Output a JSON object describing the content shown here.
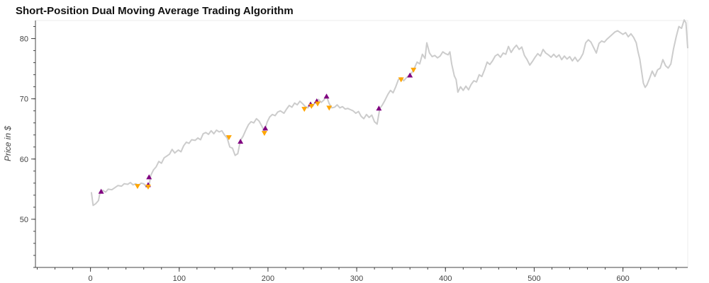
{
  "chart_data": {
    "type": "line",
    "title": "Short-Position Dual Moving Average Trading Algorithm",
    "xlabel": "",
    "ylabel": "Price in $",
    "xlim": [
      -62,
      673
    ],
    "ylim": [
      42,
      83
    ],
    "xticks": [
      0,
      100,
      200,
      300,
      400,
      500,
      600
    ],
    "yticks": [
      50,
      60,
      70,
      80
    ],
    "x_minor_step": 20,
    "y_minor_step": 2,
    "grid": false,
    "colors": {
      "price": "#cccccc",
      "buy": "#800080",
      "sell": "#ffa500",
      "axis": "#444444",
      "title": "#111111"
    },
    "series": [
      {
        "kind": "price",
        "points": [
          [
            1,
            54.5
          ],
          [
            3,
            52.3
          ],
          [
            6,
            52.6
          ],
          [
            9,
            53.1
          ],
          [
            11,
            54.6
          ],
          [
            14,
            54.8
          ],
          [
            17,
            54.5
          ],
          [
            20,
            55.0
          ],
          [
            24,
            54.9
          ],
          [
            27,
            55.2
          ],
          [
            31,
            55.6
          ],
          [
            35,
            55.5
          ],
          [
            38,
            55.9
          ],
          [
            42,
            55.8
          ],
          [
            45,
            56.1
          ],
          [
            48,
            55.7
          ],
          [
            51,
            55.9
          ],
          [
            54,
            55.6
          ],
          [
            57,
            56.0
          ],
          [
            60,
            55.9
          ],
          [
            63,
            55.4
          ],
          [
            66,
            55.6
          ],
          [
            68,
            57.3
          ],
          [
            71,
            58.2
          ],
          [
            74,
            58.7
          ],
          [
            77,
            59.6
          ],
          [
            80,
            59.3
          ],
          [
            83,
            60.2
          ],
          [
            86,
            60.5
          ],
          [
            89,
            60.8
          ],
          [
            92,
            61.6
          ],
          [
            95,
            61.0
          ],
          [
            99,
            61.5
          ],
          [
            102,
            61.2
          ],
          [
            105,
            62.2
          ],
          [
            108,
            62.8
          ],
          [
            111,
            62.6
          ],
          [
            114,
            63.2
          ],
          [
            118,
            63.1
          ],
          [
            121,
            63.5
          ],
          [
            124,
            63.2
          ],
          [
            127,
            64.2
          ],
          [
            130,
            64.4
          ],
          [
            133,
            64.1
          ],
          [
            136,
            64.7
          ],
          [
            139,
            64.2
          ],
          [
            142,
            64.8
          ],
          [
            145,
            64.5
          ],
          [
            148,
            64.7
          ],
          [
            151,
            64.0
          ],
          [
            154,
            63.5
          ],
          [
            157,
            62.0
          ],
          [
            160,
            61.8
          ],
          [
            163,
            60.6
          ],
          [
            166,
            60.9
          ],
          [
            169,
            63.1
          ],
          [
            172,
            63.8
          ],
          [
            175,
            64.8
          ],
          [
            178,
            65.7
          ],
          [
            181,
            66.2
          ],
          [
            184,
            66.0
          ],
          [
            187,
            66.7
          ],
          [
            190,
            66.3
          ],
          [
            193,
            65.5
          ],
          [
            196,
            64.6
          ],
          [
            199,
            66.1
          ],
          [
            202,
            67.0
          ],
          [
            205,
            67.4
          ],
          [
            208,
            67.2
          ],
          [
            211,
            67.8
          ],
          [
            214,
            68.0
          ],
          [
            218,
            67.6
          ],
          [
            221,
            68.3
          ],
          [
            224,
            68.9
          ],
          [
            227,
            68.6
          ],
          [
            230,
            69.3
          ],
          [
            233,
            69.0
          ],
          [
            236,
            69.6
          ],
          [
            239,
            69.2
          ],
          [
            242,
            68.7
          ],
          [
            245,
            68.5
          ],
          [
            248,
            69.2
          ],
          [
            251,
            68.9
          ],
          [
            254,
            69.6
          ],
          [
            257,
            69.9
          ],
          [
            260,
            69.4
          ],
          [
            263,
            69.8
          ],
          [
            266,
            70.4
          ],
          [
            269,
            69.2
          ],
          [
            272,
            68.5
          ],
          [
            275,
            68.6
          ],
          [
            278,
            69.0
          ],
          [
            281,
            68.5
          ],
          [
            284,
            68.7
          ],
          [
            287,
            68.3
          ],
          [
            290,
            68.4
          ],
          [
            293,
            68.2
          ],
          [
            296,
            68.0
          ],
          [
            299,
            67.6
          ],
          [
            302,
            67.9
          ],
          [
            305,
            67.1
          ],
          [
            308,
            66.7
          ],
          [
            311,
            67.4
          ],
          [
            314,
            66.9
          ],
          [
            317,
            67.3
          ],
          [
            320,
            66.2
          ],
          [
            323,
            65.8
          ],
          [
            326,
            68.4
          ],
          [
            329,
            69.0
          ],
          [
            332,
            69.8
          ],
          [
            335,
            70.7
          ],
          [
            338,
            71.4
          ],
          [
            341,
            71.0
          ],
          [
            344,
            72.0
          ],
          [
            347,
            73.2
          ],
          [
            350,
            73.5
          ],
          [
            353,
            73.0
          ],
          [
            356,
            73.5
          ],
          [
            359,
            73.9
          ],
          [
            362,
            74.3
          ],
          [
            365,
            75.1
          ],
          [
            368,
            76.1
          ],
          [
            371,
            75.8
          ],
          [
            374,
            77.4
          ],
          [
            377,
            76.7
          ],
          [
            379,
            79.3
          ],
          [
            382,
            77.6
          ],
          [
            385,
            77.0
          ],
          [
            388,
            77.2
          ],
          [
            391,
            76.8
          ],
          [
            394,
            77.1
          ],
          [
            397,
            77.8
          ],
          [
            400,
            77.5
          ],
          [
            403,
            77.3
          ],
          [
            405,
            77.8
          ],
          [
            407,
            75.8
          ],
          [
            410,
            73.8
          ],
          [
            412,
            73.2
          ],
          [
            414,
            71.1
          ],
          [
            417,
            72.0
          ],
          [
            420,
            71.4
          ],
          [
            423,
            72.1
          ],
          [
            426,
            71.5
          ],
          [
            429,
            72.4
          ],
          [
            432,
            73.0
          ],
          [
            435,
            72.8
          ],
          [
            438,
            74.0
          ],
          [
            441,
            73.7
          ],
          [
            444,
            74.8
          ],
          [
            447,
            76.1
          ],
          [
            450,
            75.7
          ],
          [
            453,
            76.3
          ],
          [
            456,
            77.1
          ],
          [
            459,
            77.4
          ],
          [
            462,
            76.9
          ],
          [
            465,
            77.6
          ],
          [
            468,
            77.4
          ],
          [
            471,
            78.7
          ],
          [
            474,
            77.7
          ],
          [
            477,
            78.4
          ],
          [
            480,
            78.9
          ],
          [
            483,
            78.2
          ],
          [
            486,
            78.6
          ],
          [
            489,
            77.2
          ],
          [
            492,
            76.5
          ],
          [
            495,
            75.6
          ],
          [
            498,
            76.2
          ],
          [
            501,
            76.9
          ],
          [
            504,
            77.5
          ],
          [
            507,
            77.1
          ],
          [
            510,
            78.2
          ],
          [
            513,
            77.6
          ],
          [
            516,
            77.3
          ],
          [
            519,
            76.9
          ],
          [
            522,
            77.4
          ],
          [
            525,
            76.9
          ],
          [
            528,
            77.3
          ],
          [
            531,
            76.5
          ],
          [
            534,
            77.1
          ],
          [
            537,
            76.6
          ],
          [
            540,
            77.0
          ],
          [
            543,
            76.3
          ],
          [
            546,
            76.9
          ],
          [
            549,
            76.2
          ],
          [
            552,
            76.7
          ],
          [
            555,
            77.5
          ],
          [
            558,
            79.3
          ],
          [
            561,
            79.8
          ],
          [
            564,
            79.4
          ],
          [
            567,
            78.5
          ],
          [
            570,
            77.6
          ],
          [
            573,
            79.2
          ],
          [
            576,
            79.6
          ],
          [
            579,
            79.4
          ],
          [
            582,
            79.9
          ],
          [
            585,
            80.3
          ],
          [
            588,
            80.7
          ],
          [
            591,
            81.1
          ],
          [
            594,
            81.3
          ],
          [
            597,
            81.0
          ],
          [
            600,
            80.7
          ],
          [
            603,
            81.0
          ],
          [
            606,
            80.3
          ],
          [
            609,
            80.8
          ],
          [
            612,
            80.2
          ],
          [
            615,
            79.3
          ],
          [
            617,
            77.8
          ],
          [
            619,
            76.6
          ],
          [
            621,
            74.6
          ],
          [
            623,
            72.6
          ],
          [
            625,
            71.9
          ],
          [
            627,
            72.3
          ],
          [
            630,
            73.4
          ],
          [
            633,
            74.6
          ],
          [
            636,
            73.7
          ],
          [
            639,
            74.8
          ],
          [
            642,
            75.1
          ],
          [
            645,
            76.5
          ],
          [
            648,
            75.5
          ],
          [
            651,
            75.1
          ],
          [
            654,
            75.8
          ],
          [
            657,
            78.3
          ],
          [
            660,
            80.3
          ],
          [
            663,
            82.0
          ],
          [
            666,
            81.7
          ],
          [
            669,
            83.1
          ],
          [
            671,
            82.6
          ],
          [
            673,
            78.4
          ]
        ]
      },
      {
        "kind": "buy",
        "marker": "triangle-up",
        "points": [
          [
            12,
            54.6
          ],
          [
            65,
            55.7
          ],
          [
            66,
            57.0
          ],
          [
            169,
            62.9
          ],
          [
            197,
            65.1
          ],
          [
            248,
            69.1
          ],
          [
            255,
            69.6
          ],
          [
            266,
            70.4
          ],
          [
            325,
            68.4
          ],
          [
            360,
            73.9
          ]
        ]
      },
      {
        "kind": "sell",
        "marker": "triangle-down",
        "points": [
          [
            53,
            55.5
          ],
          [
            65,
            55.4
          ],
          [
            156,
            63.6
          ],
          [
            196,
            64.3
          ],
          [
            241,
            68.3
          ],
          [
            249,
            68.8
          ],
          [
            256,
            69.2
          ],
          [
            269,
            68.5
          ],
          [
            350,
            73.2
          ],
          [
            364,
            74.8
          ]
        ]
      }
    ]
  }
}
